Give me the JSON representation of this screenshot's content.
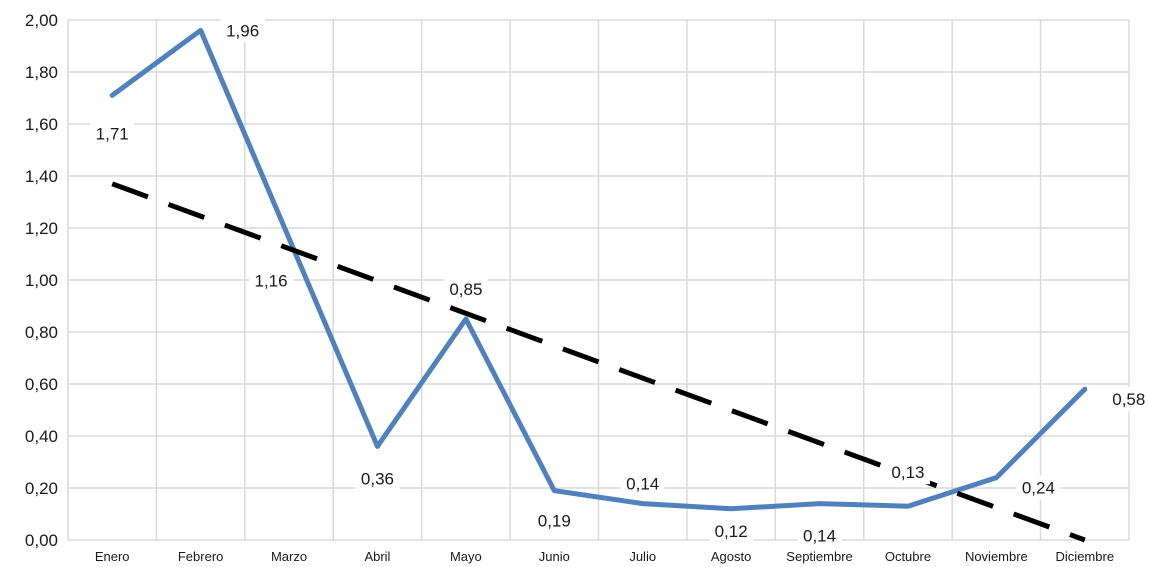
{
  "chart_data": {
    "type": "line",
    "title": "",
    "xlabel": "",
    "ylabel": "",
    "categories": [
      "Enero",
      "Febrero",
      "Marzo",
      "Abril",
      "Mayo",
      "Junio",
      "Julio",
      "Agosto",
      "Septiembre",
      "Octubre",
      "Noviembre",
      "Diciembre"
    ],
    "y_ticks": [
      "0,00",
      "0,20",
      "0,40",
      "0,60",
      "0,80",
      "1,00",
      "1,20",
      "1,40",
      "1,60",
      "1,80",
      "2,00"
    ],
    "ylim": [
      0,
      2
    ],
    "grid": true,
    "legend": "none",
    "series": [
      {
        "values": [
          1.71,
          1.96,
          1.16,
          0.36,
          0.85,
          0.19,
          0.14,
          0.12,
          0.14,
          0.13,
          0.24,
          0.58
        ],
        "data_labels": [
          "1,71",
          "1,96",
          "1,16",
          "0,36",
          "0,85",
          "0,19",
          "0,14",
          "0,12",
          "0,14",
          "0,13",
          "0,24",
          "0,58"
        ],
        "color": "#4f81bd"
      }
    ],
    "trendline": {
      "type": "linear",
      "style": "dashed",
      "color": "#000000",
      "start_value": 1.37,
      "end_value": 0.0
    },
    "colors": {
      "grid": "#d9d9d9",
      "series": "#4f81bd",
      "trend": "#000000"
    }
  }
}
